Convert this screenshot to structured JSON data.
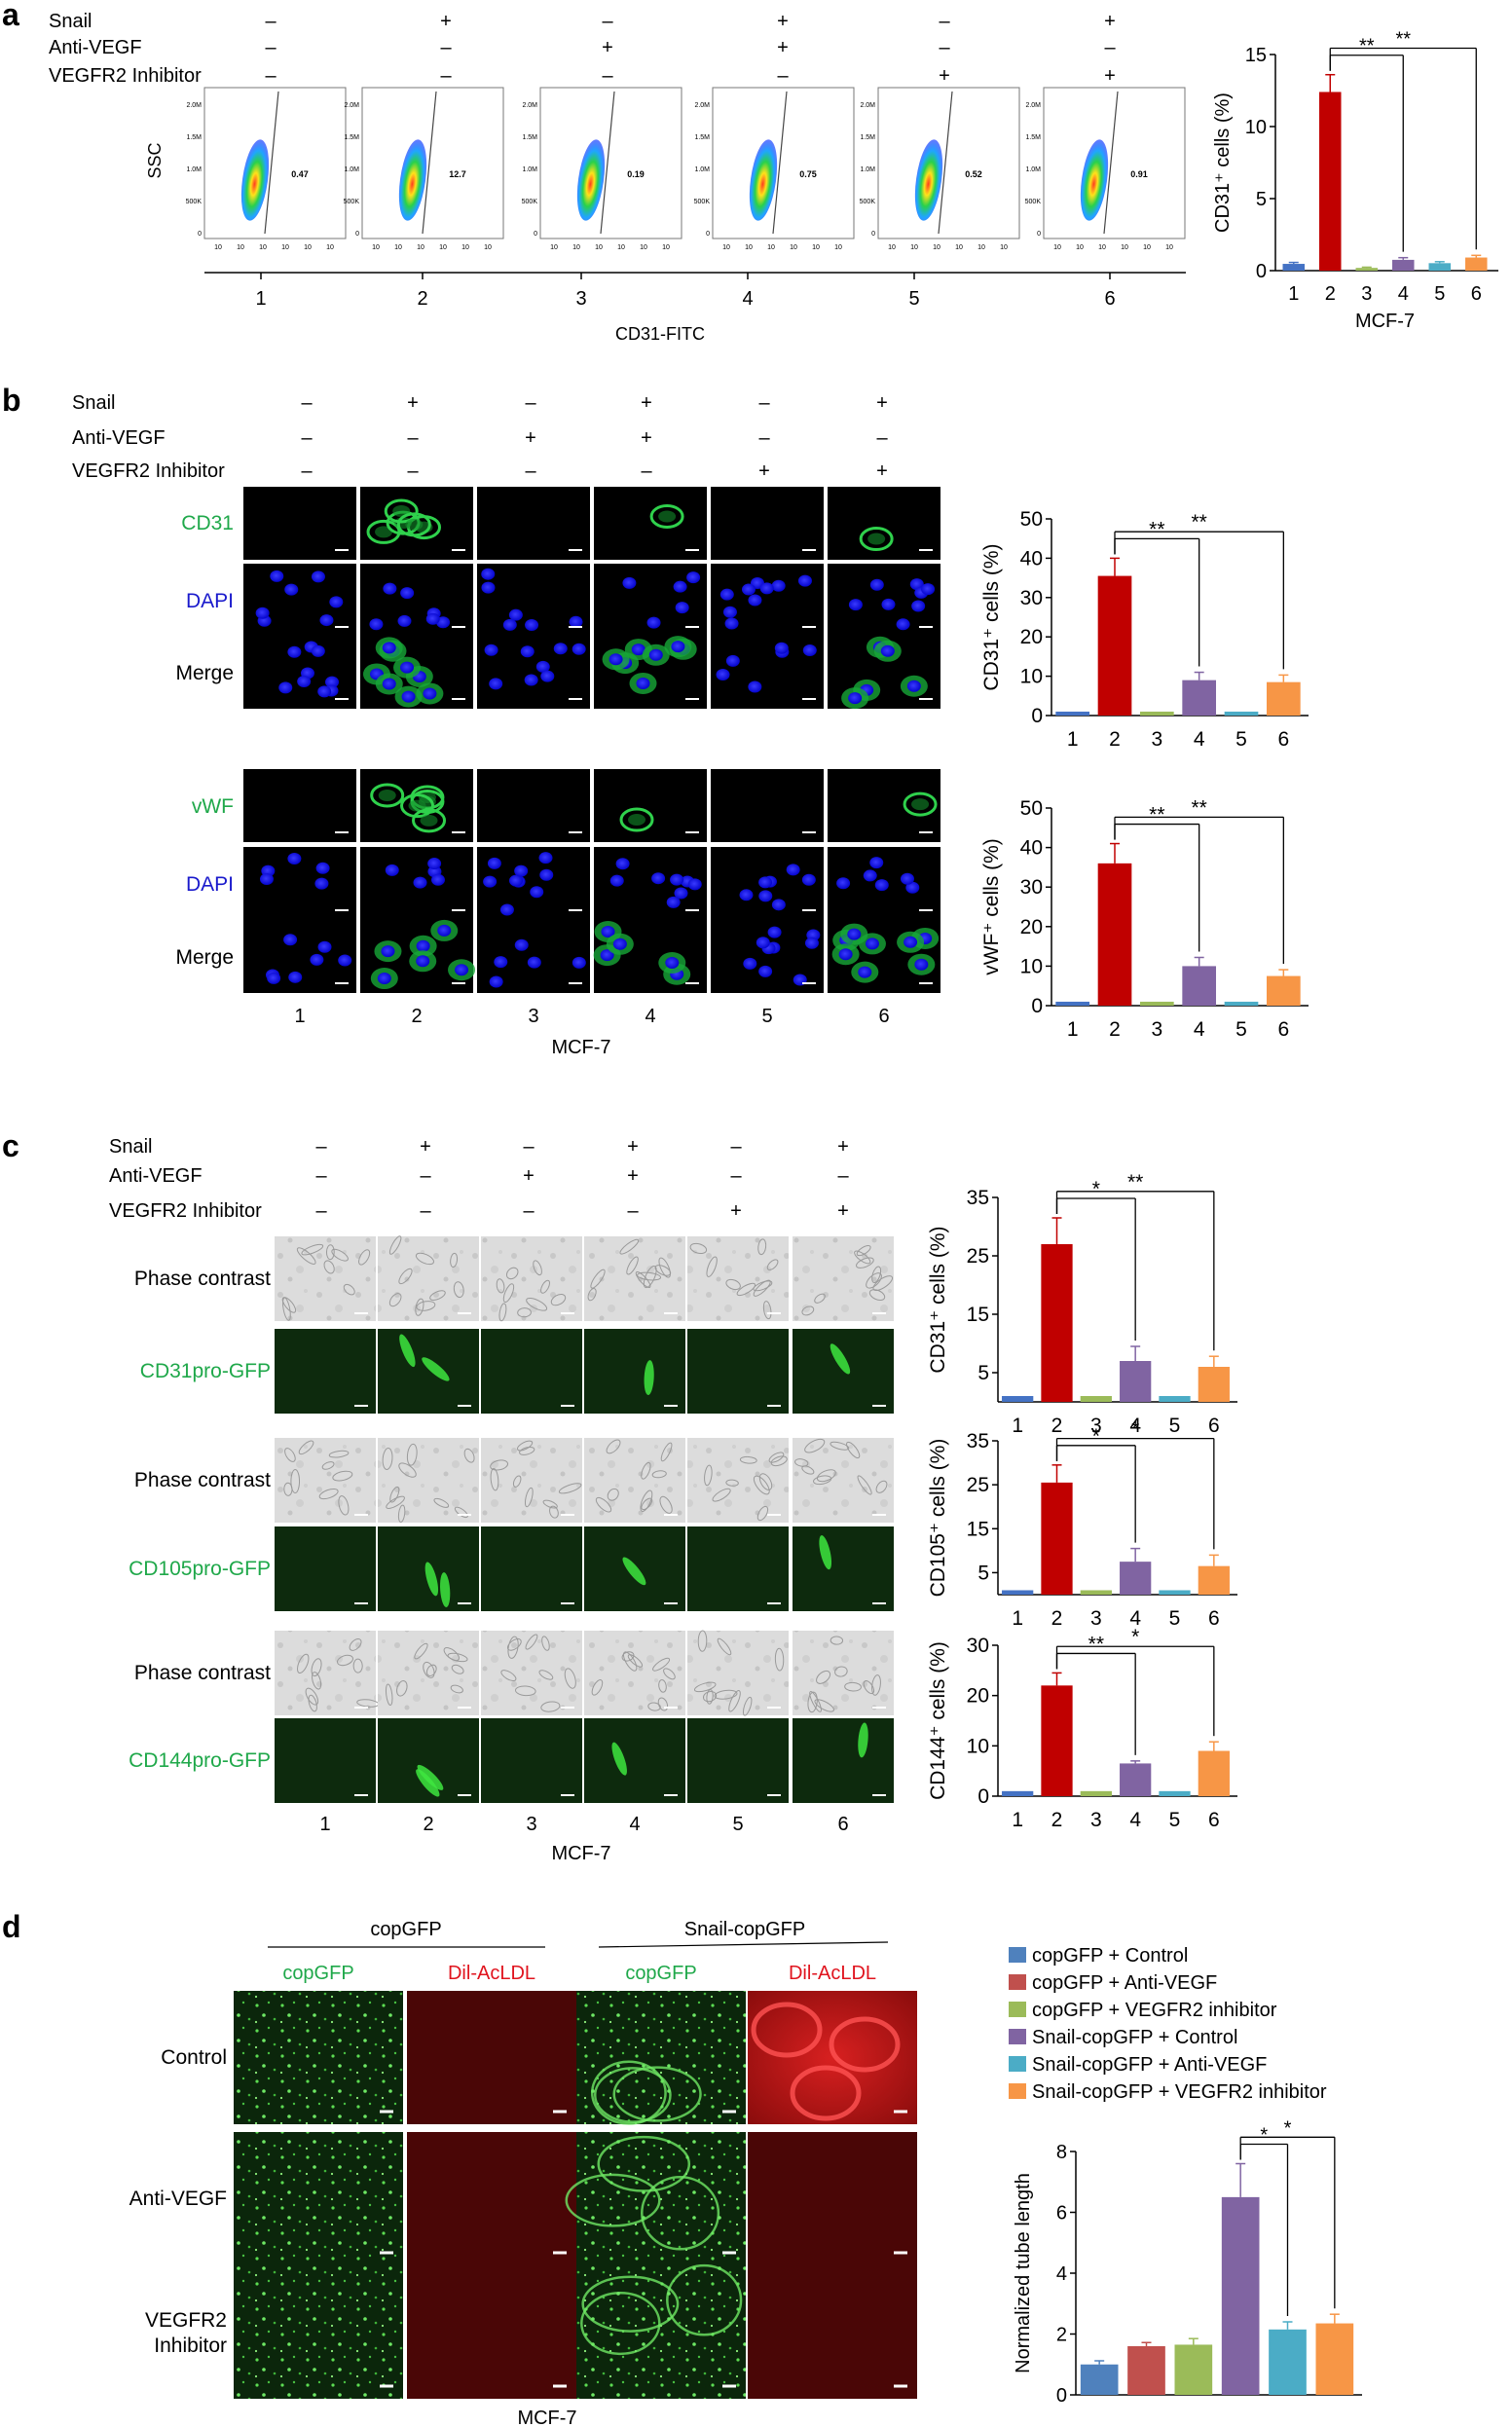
{
  "panel_letters": [
    "a",
    "b",
    "c",
    "d"
  ],
  "colors": {
    "c1": "#4472c4",
    "c2": "#c00000",
    "c3": "#9bbb59",
    "c4": "#8064a2",
    "c5": "#4bacc6",
    "c6": "#f79646",
    "d1": "#4f81bd",
    "d2": "#c0504d",
    "d3": "#9bbb59",
    "d4": "#8064a2",
    "d5": "#4bacc6",
    "d6": "#f79646",
    "green_label": "#1fa84a",
    "blue_label": "#1a1acc",
    "red_label": "#e0141e"
  },
  "treatments": {
    "row_labels": [
      "Snail",
      "Anti-VEGF",
      "VEGFR2 Inhibitor"
    ],
    "rows": [
      [
        "–",
        "+",
        "–",
        "+",
        "–",
        "+"
      ],
      [
        "–",
        "–",
        "+",
        "+",
        "–",
        "–"
      ],
      [
        "–",
        "–",
        "–",
        "–",
        "+",
        "+"
      ]
    ]
  },
  "lanes": [
    "1",
    "2",
    "3",
    "4",
    "5",
    "6"
  ],
  "panel_a": {
    "y_axis_label": "SSC",
    "x_axis_label": "CD31-FITC",
    "y_ticks": [
      "2.0M",
      "1.5M",
      "1.0M",
      "500K",
      "0"
    ],
    "x_ticks": [
      "10",
      "10",
      "10",
      "10",
      "10",
      "10"
    ],
    "gate_values": [
      "0.47",
      "12.7",
      "0.19",
      "0.75",
      "0.52",
      "0.91"
    ]
  },
  "panel_b": {
    "rows_cd31": [
      "CD31",
      "DAPI",
      "Merge"
    ],
    "rows_vwf": [
      "vWF",
      "DAPI",
      "Merge"
    ],
    "cell_line": "MCF-7"
  },
  "panel_c": {
    "rows": [
      "Phase contrast",
      "CD31pro-GFP",
      "Phase contrast",
      "CD105pro-GFP",
      "Phase contrast",
      "CD144pro-GFP"
    ],
    "cell_line": "MCF-7"
  },
  "panel_d": {
    "group_labels": [
      "copGFP",
      "Snail-copGFP"
    ],
    "column_labels": [
      "copGFP",
      "Dil-AcLDL",
      "copGFP",
      "Dil-AcLDL"
    ],
    "row_labels": [
      "Control",
      "Anti-VEGF",
      "VEGFR2\nInhibitor"
    ],
    "cell_line": "MCF-7"
  },
  "chart_data": [
    {
      "type": "bar",
      "panel": "a",
      "categories": [
        "1",
        "2",
        "3",
        "4",
        "5",
        "6"
      ],
      "values": [
        0.47,
        12.4,
        0.19,
        0.75,
        0.52,
        0.91
      ],
      "errors": [
        0.1,
        1.2,
        0.05,
        0.15,
        0.1,
        0.15
      ],
      "ylabel": "CD31⁺ cells (%)",
      "xlabel": "MCF-7",
      "ylim": [
        0,
        15
      ],
      "yticks": [
        0,
        5,
        10,
        15
      ],
      "significance": [
        {
          "from": "2",
          "to": "4",
          "label": "**"
        },
        {
          "from": "2",
          "to": "6",
          "label": "**"
        }
      ]
    },
    {
      "type": "bar",
      "panel": "b-top",
      "categories": [
        "1",
        "2",
        "3",
        "4",
        "5",
        "6"
      ],
      "values": [
        1,
        35.5,
        1,
        9,
        1,
        8.5
      ],
      "errors": [
        0,
        4.5,
        0,
        2,
        0,
        1.8
      ],
      "ylabel": "CD31⁺ cells (%)",
      "xlabel": "",
      "ylim": [
        0,
        50
      ],
      "yticks": [
        0,
        10,
        20,
        30,
        40,
        50
      ],
      "significance": [
        {
          "from": "2",
          "to": "4",
          "label": "**"
        },
        {
          "from": "2",
          "to": "6",
          "label": "**"
        }
      ]
    },
    {
      "type": "bar",
      "panel": "b-bottom",
      "categories": [
        "1",
        "2",
        "3",
        "4",
        "5",
        "6"
      ],
      "values": [
        1,
        36,
        1,
        10,
        1,
        7.5
      ],
      "errors": [
        0,
        5,
        0,
        2.2,
        0,
        1.6
      ],
      "ylabel": "vWF⁺ cells (%)",
      "xlabel": "",
      "ylim": [
        0,
        50
      ],
      "yticks": [
        0,
        10,
        20,
        30,
        40,
        50
      ],
      "significance": [
        {
          "from": "2",
          "to": "4",
          "label": "**"
        },
        {
          "from": "2",
          "to": "6",
          "label": "**"
        }
      ]
    },
    {
      "type": "bar",
      "panel": "c-1",
      "categories": [
        "1",
        "2",
        "3",
        "4",
        "5",
        "6"
      ],
      "values": [
        1,
        27,
        1,
        7,
        1,
        6
      ],
      "errors": [
        0,
        4.5,
        0,
        2.5,
        0,
        1.8
      ],
      "ylabel": "CD31⁺ cells (%)",
      "xlabel": "",
      "ylim": [
        0,
        35
      ],
      "yticks": [
        5,
        15,
        25,
        35
      ],
      "significance": [
        {
          "from": "2",
          "to": "4",
          "label": "*"
        },
        {
          "from": "2",
          "to": "6",
          "label": "**"
        }
      ]
    },
    {
      "type": "bar",
      "panel": "c-2",
      "categories": [
        "1",
        "2",
        "3",
        "4",
        "5",
        "6"
      ],
      "values": [
        1,
        25.5,
        1,
        7.5,
        1,
        6.5
      ],
      "errors": [
        0,
        4,
        0,
        3,
        0,
        2.5
      ],
      "ylabel": "CD105⁺ cells (%)",
      "xlabel": "",
      "ylim": [
        0,
        35
      ],
      "yticks": [
        5,
        15,
        25,
        35
      ],
      "significance": [
        {
          "from": "2",
          "to": "4",
          "label": "*"
        },
        {
          "from": "2",
          "to": "6",
          "label": "*"
        }
      ]
    },
    {
      "type": "bar",
      "panel": "c-3",
      "categories": [
        "1",
        "2",
        "3",
        "4",
        "5",
        "6"
      ],
      "values": [
        1,
        22,
        1,
        6.5,
        1,
        9
      ],
      "errors": [
        0,
        2.5,
        0,
        0.5,
        0,
        1.8
      ],
      "ylabel": "CD144⁺ cells (%)",
      "xlabel": "",
      "ylim": [
        0,
        30
      ],
      "yticks": [
        0,
        10,
        20,
        30
      ],
      "significance": [
        {
          "from": "2",
          "to": "4",
          "label": "**"
        },
        {
          "from": "2",
          "to": "6",
          "label": "*"
        }
      ]
    },
    {
      "type": "bar",
      "panel": "d",
      "categories": [
        "copGFP + Control",
        "copGFP + Anti-VEGF",
        "copGFP + VEGFR2 inhibitor",
        "Snail-copGFP + Control",
        "Snail-copGFP + Anti-VEGF",
        "Snail-copGFP + VEGFR2 inhibitor"
      ],
      "values": [
        1.0,
        1.6,
        1.65,
        6.5,
        2.15,
        2.35
      ],
      "errors": [
        0.12,
        0.12,
        0.2,
        1.1,
        0.25,
        0.3
      ],
      "ylabel": "Normalized tube length",
      "xlabel": "",
      "ylim": [
        0,
        8
      ],
      "yticks": [
        0,
        2,
        4,
        6,
        8
      ],
      "legend": [
        "copGFP + Control",
        "copGFP + Anti-VEGF",
        "copGFP + VEGFR2 inhibitor",
        "Snail-copGFP + Control",
        "Snail-copGFP + Anti-VEGF",
        "Snail-copGFP + VEGFR2 inhibitor"
      ],
      "legend_position": "top",
      "significance": [
        {
          "from": "4",
          "to": "5",
          "label": "*"
        },
        {
          "from": "4",
          "to": "6",
          "label": "*"
        }
      ]
    }
  ]
}
